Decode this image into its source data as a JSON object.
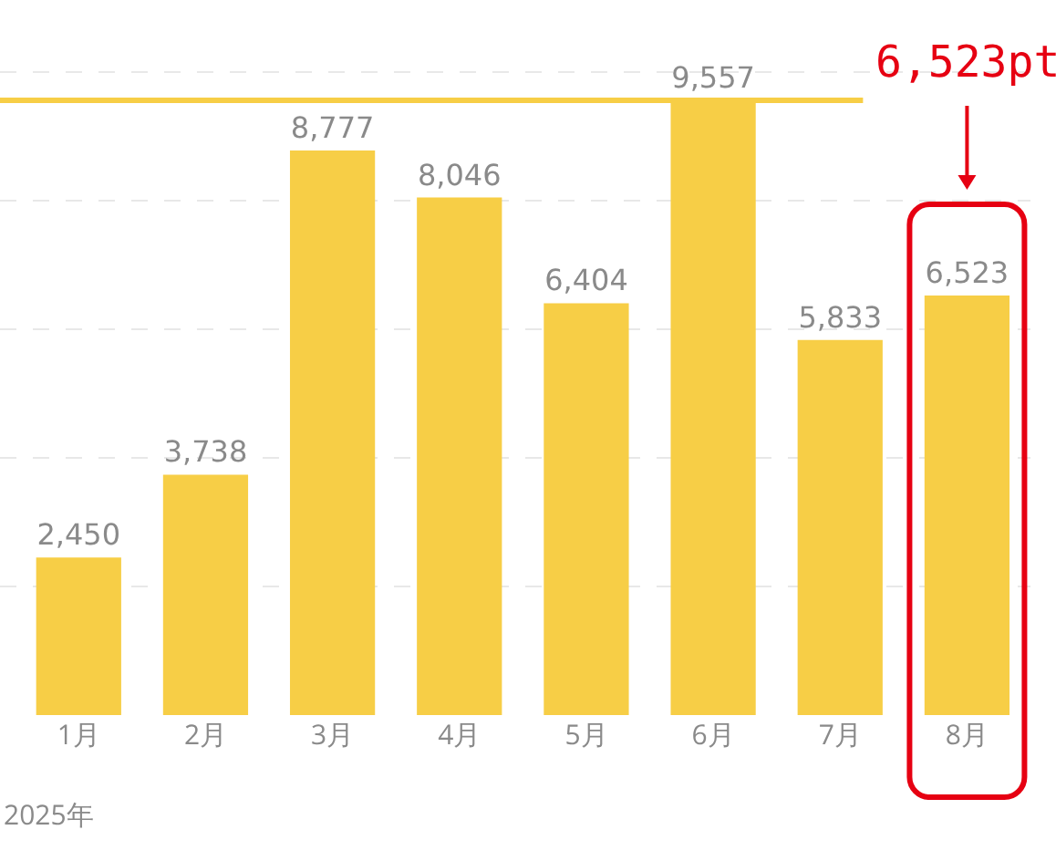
{
  "chart_data": {
    "type": "bar",
    "categories": [
      "1月",
      "2月",
      "3月",
      "4月",
      "5月",
      "6月",
      "7月",
      "8月"
    ],
    "values": [
      2450,
      3738,
      8777,
      8046,
      6404,
      9557,
      5833,
      6523
    ],
    "color": "#f7ce46",
    "value_labels": [
      "2,450",
      "3,738",
      "8,777",
      "8,046",
      "6,404",
      "9,557",
      "5,833",
      "6,523"
    ],
    "grid": "y",
    "tick_labels": "x",
    "ref_lines": [
      {
        "axis": "y",
        "value": 9557,
        "color": "#f7ce46"
      }
    ],
    "annotations": [
      "2025年",
      "6,523pt"
    ]
  }
}
